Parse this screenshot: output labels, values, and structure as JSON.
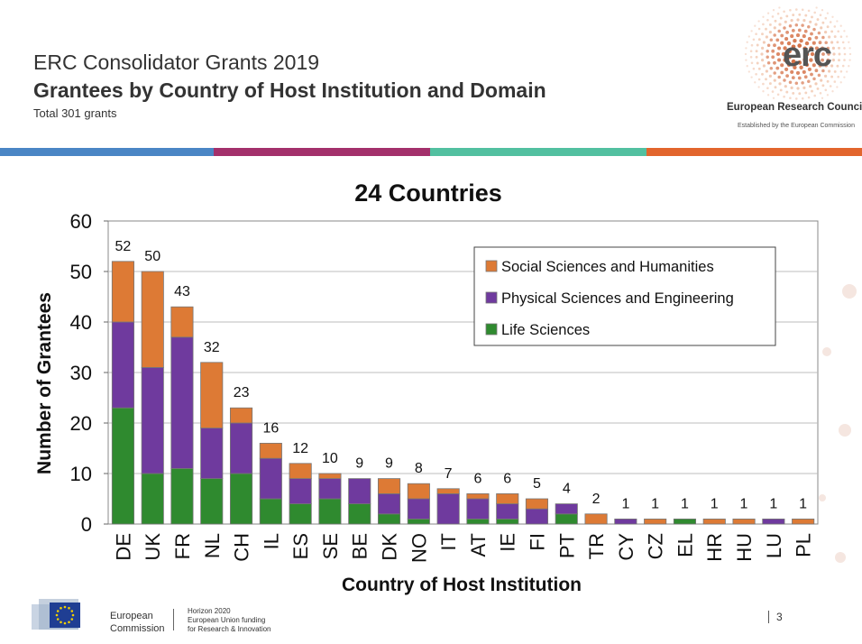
{
  "header": {
    "subtitle": "ERC Consolidator Grants 2019",
    "title": "Grantees by Country of Host Institution and Domain",
    "total": "Total 301 grants"
  },
  "logo": {
    "word": "erc",
    "name": "European Research Council",
    "established": "Established by the European Commission"
  },
  "colors": {
    "stripe": [
      "#4a86c5",
      "#a3306b",
      "#52c0a0",
      "#e2652d"
    ],
    "life": "#2f8a2f",
    "physical": "#6f3a9e",
    "social": "#dd7a35"
  },
  "chart_data": {
    "type": "bar",
    "stacked": true,
    "title": "24 Countries",
    "xlabel": "Country of Host Institution",
    "ylabel": "Number of Grantees",
    "ylim": [
      0,
      60
    ],
    "yticks": [
      0,
      10,
      20,
      30,
      40,
      50,
      60
    ],
    "grid": true,
    "legend_position": "top-right",
    "categories": [
      "DE",
      "UK",
      "FR",
      "NL",
      "CH",
      "IL",
      "ES",
      "SE",
      "BE",
      "DK",
      "NO",
      "IT",
      "AT",
      "IE",
      "FI",
      "PT",
      "TR",
      "CY",
      "CZ",
      "EL",
      "HR",
      "HU",
      "LU",
      "PL"
    ],
    "series": [
      {
        "name": "Life Sciences",
        "values": [
          23,
          10,
          11,
          9,
          10,
          5,
          4,
          5,
          4,
          2,
          1,
          0,
          1,
          1,
          0,
          2,
          0,
          0,
          0,
          1,
          0,
          0,
          0,
          0
        ]
      },
      {
        "name": "Physical Sciences and Engineering",
        "values": [
          17,
          21,
          26,
          10,
          10,
          8,
          5,
          4,
          5,
          4,
          4,
          6,
          4,
          3,
          3,
          2,
          0,
          1,
          0,
          0,
          0,
          0,
          1,
          0
        ]
      },
      {
        "name": "Social Sciences and Humanities",
        "values": [
          12,
          19,
          6,
          13,
          3,
          3,
          3,
          1,
          0,
          3,
          3,
          1,
          1,
          2,
          2,
          0,
          2,
          0,
          1,
          0,
          1,
          1,
          0,
          1
        ]
      }
    ],
    "totals": [
      52,
      50,
      43,
      32,
      23,
      16,
      12,
      10,
      9,
      9,
      8,
      7,
      6,
      6,
      5,
      4,
      2,
      1,
      1,
      1,
      1,
      1,
      1,
      1
    ],
    "legend": [
      "Social Sciences and Humanities",
      "Physical Sciences and Engineering",
      "Life Sciences"
    ]
  },
  "footer": {
    "ec_line1": "European",
    "ec_line2": "Commission",
    "h2020_line1": "Horizon 2020",
    "h2020_line2": "European Union funding",
    "h2020_line3": "for Research & Innovation",
    "page": "3"
  }
}
